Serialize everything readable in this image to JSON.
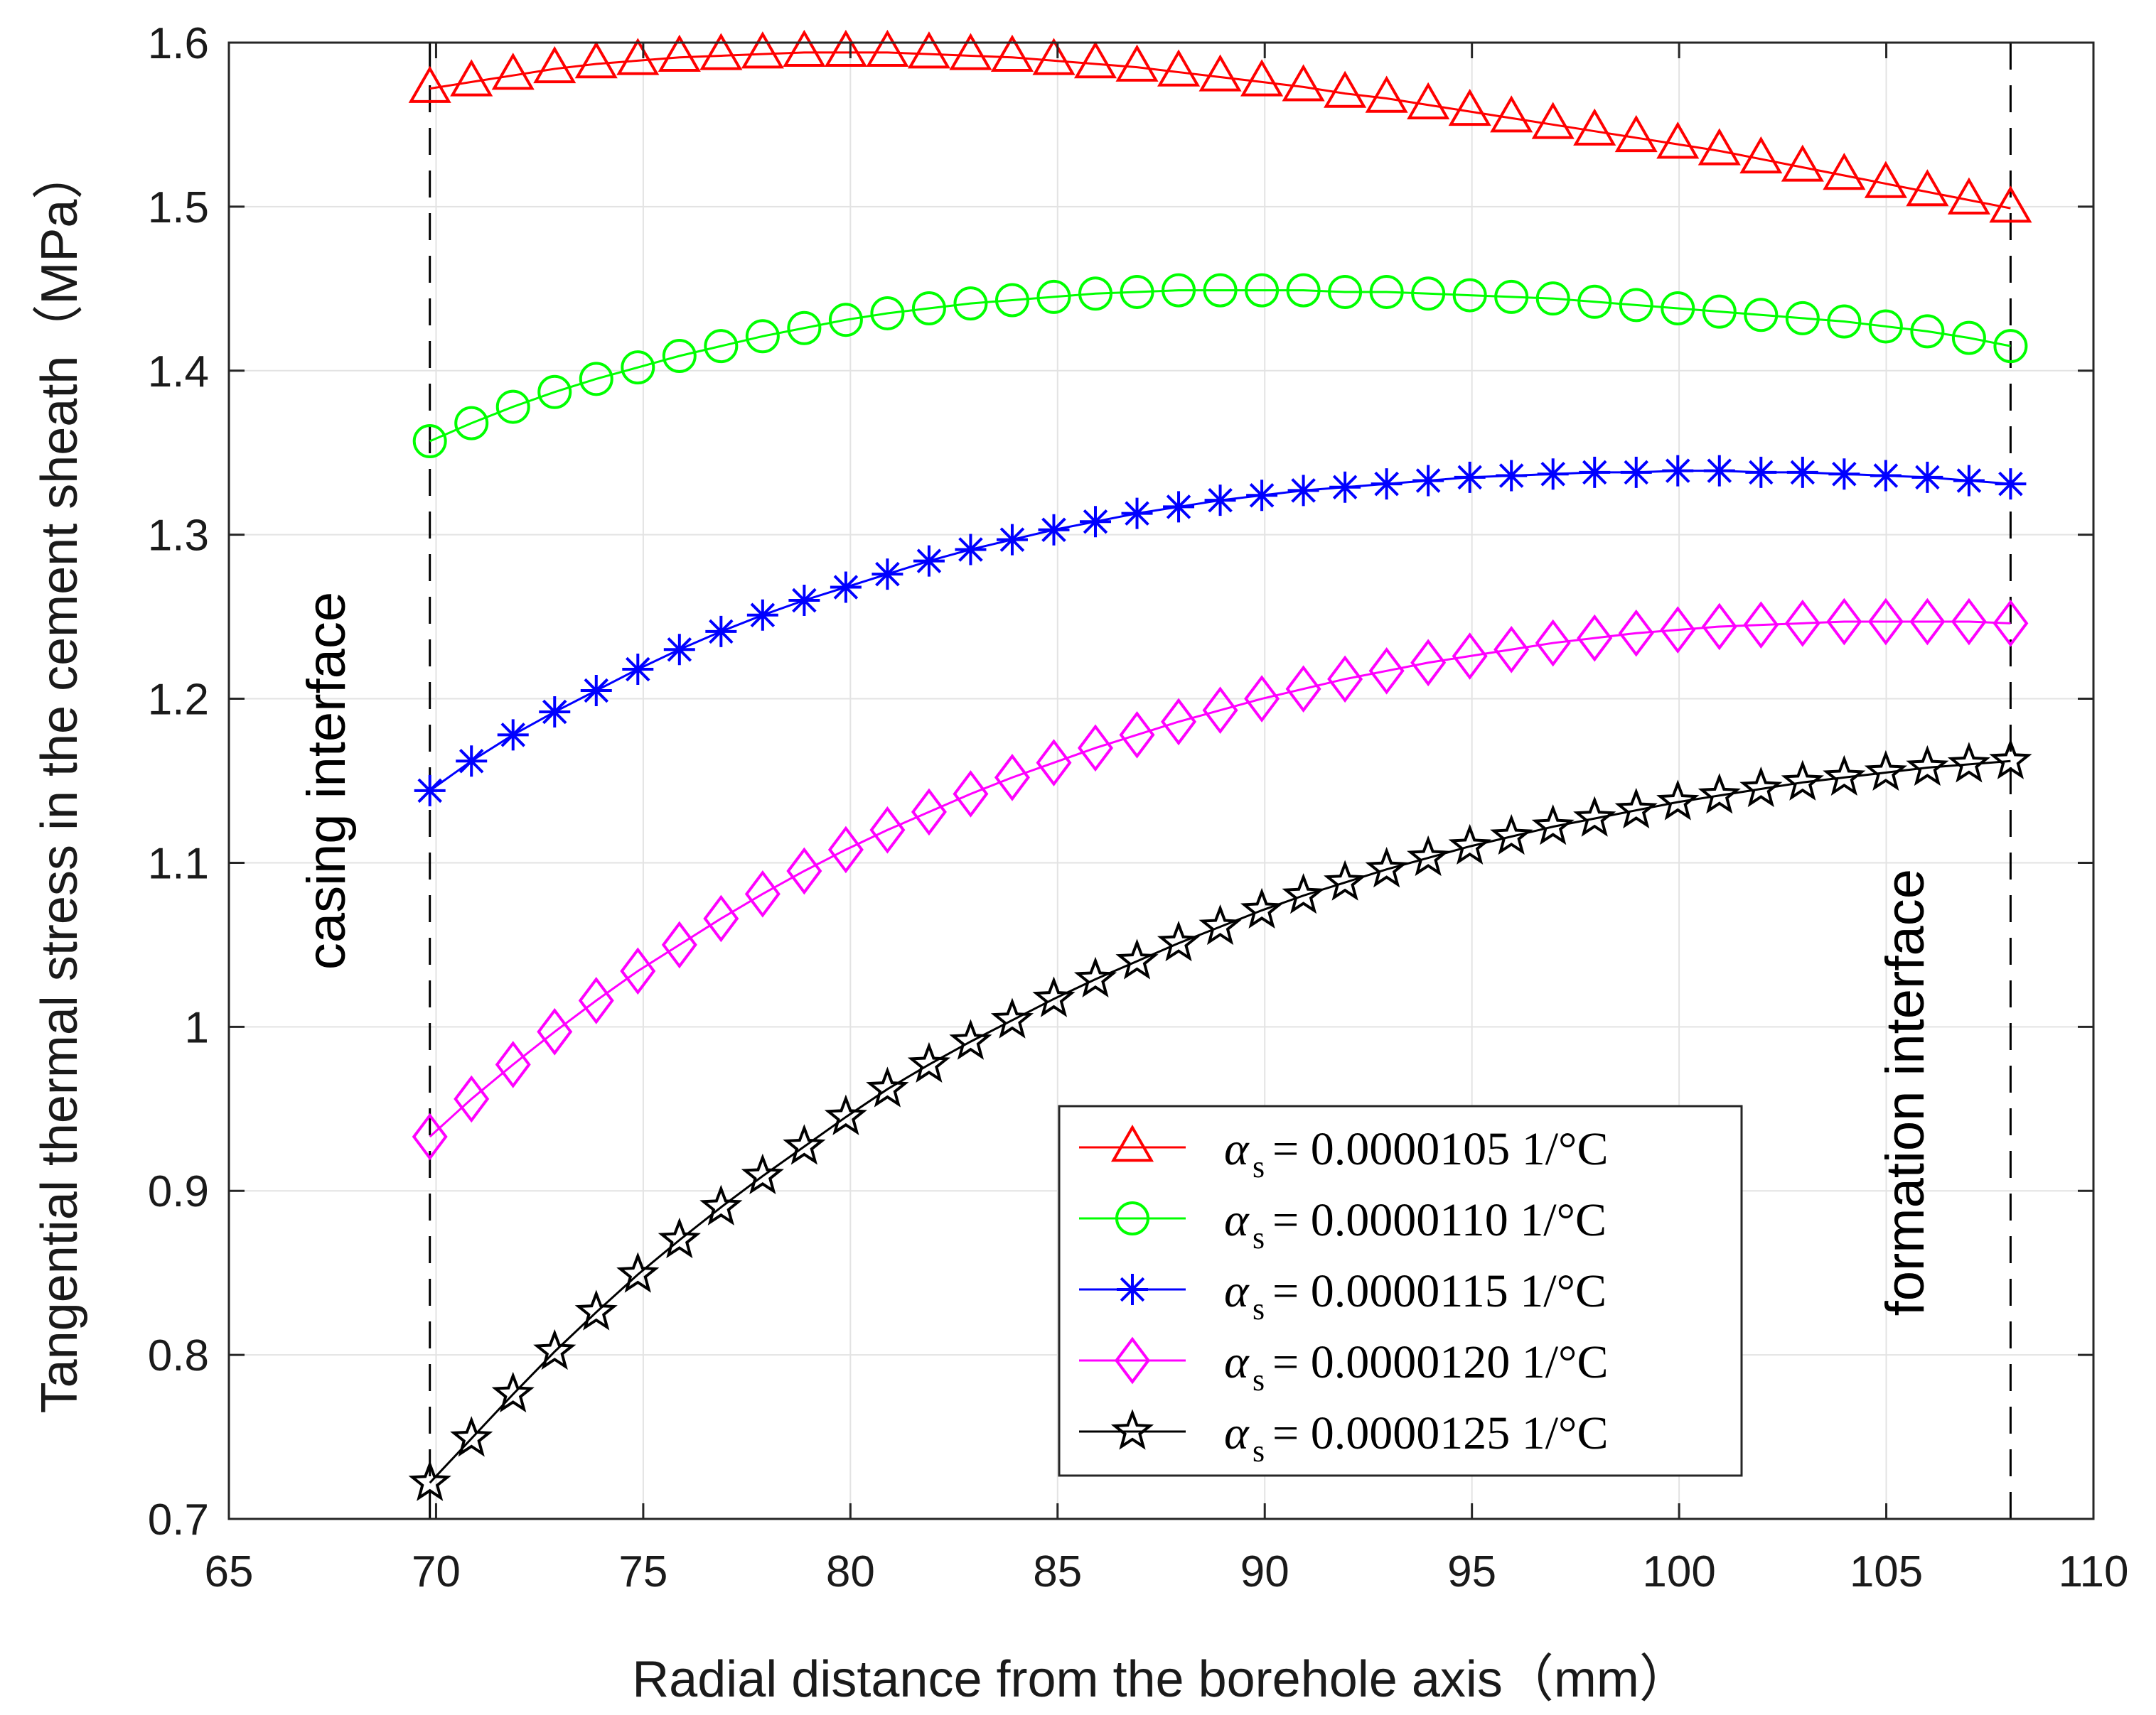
{
  "chart_data": {
    "type": "line",
    "title": "",
    "xlabel": "Radial distance from the borehole axis（mm）",
    "ylabel": "Tangential thermal stress in the cement sheath（MPa）",
    "xlim": [
      65,
      110
    ],
    "ylim": [
      0.7,
      1.6
    ],
    "xticks": [
      65,
      70,
      75,
      80,
      85,
      90,
      95,
      100,
      105,
      110
    ],
    "yticks": [
      0.7,
      0.8,
      0.9,
      1.0,
      1.1,
      1.2,
      1.3,
      1.4,
      1.5,
      1.6
    ],
    "xtick_labels": [
      "65",
      "70",
      "75",
      "80",
      "85",
      "90",
      "95",
      "100",
      "105",
      "110"
    ],
    "ytick_labels": [
      "0.7",
      "0.8",
      "0.9",
      "1",
      "1.1",
      "1.2",
      "1.3",
      "1.4",
      "1.5",
      "1.6"
    ],
    "grid": true,
    "legend_position": "bottom-right",
    "x_start": 69.85,
    "x_end": 108.0,
    "n_points": 39,
    "vertical_lines": [
      69.85,
      108.0
    ],
    "annotations": [
      {
        "text": "casing  interface",
        "x": 67.8,
        "y": 1.15
      },
      {
        "text": "formation  interface",
        "x": 105.9,
        "y": 0.96
      }
    ],
    "series": [
      {
        "name": "αs = 0.0000105  1/°C",
        "symbol": "α",
        "subscript": "s",
        "value_text": "= 0.0000105  1/°C",
        "color": "#ff0000",
        "marker": "triangle",
        "values": [
          1.572,
          1.576,
          1.58,
          1.584,
          1.587,
          1.589,
          1.591,
          1.592,
          1.593,
          1.594,
          1.594,
          1.594,
          1.593,
          1.592,
          1.591,
          1.589,
          1.587,
          1.585,
          1.582,
          1.579,
          1.576,
          1.573,
          1.569,
          1.566,
          1.562,
          1.558,
          1.554,
          1.55,
          1.546,
          1.542,
          1.538,
          1.534,
          1.529,
          1.524,
          1.519,
          1.514,
          1.509,
          1.504,
          1.499
        ]
      },
      {
        "name": "αs = 0.0000110   1/°C",
        "symbol": "α",
        "subscript": "s",
        "value_text": "= 0.0000110   1/°C",
        "color": "#00ff00",
        "marker": "circle",
        "values": [
          1.357,
          1.368,
          1.378,
          1.387,
          1.395,
          1.402,
          1.409,
          1.415,
          1.421,
          1.426,
          1.431,
          1.435,
          1.438,
          1.441,
          1.443,
          1.445,
          1.447,
          1.448,
          1.449,
          1.449,
          1.449,
          1.449,
          1.448,
          1.448,
          1.447,
          1.446,
          1.445,
          1.444,
          1.442,
          1.44,
          1.438,
          1.436,
          1.434,
          1.432,
          1.43,
          1.427,
          1.424,
          1.42,
          1.415
        ]
      },
      {
        "name": "αs = 0.0000115  1/°C",
        "symbol": "α",
        "subscript": "s",
        "value_text": "= 0.0000115  1/°C",
        "color": "#0000ff",
        "marker": "asterisk",
        "values": [
          1.144,
          1.162,
          1.178,
          1.192,
          1.205,
          1.218,
          1.23,
          1.241,
          1.251,
          1.26,
          1.268,
          1.276,
          1.284,
          1.291,
          1.297,
          1.303,
          1.308,
          1.313,
          1.317,
          1.321,
          1.324,
          1.327,
          1.329,
          1.331,
          1.333,
          1.335,
          1.336,
          1.337,
          1.338,
          1.338,
          1.339,
          1.339,
          1.338,
          1.338,
          1.337,
          1.336,
          1.335,
          1.333,
          1.331
        ]
      },
      {
        "name": "αs = 0.0000120  1/°C",
        "symbol": "α",
        "subscript": "s",
        "value_text": "= 0.0000120  1/°C",
        "color": "#ff00ff",
        "marker": "diamond",
        "values": [
          0.933,
          0.956,
          0.977,
          0.997,
          1.016,
          1.034,
          1.05,
          1.066,
          1.081,
          1.095,
          1.108,
          1.12,
          1.131,
          1.142,
          1.152,
          1.161,
          1.17,
          1.178,
          1.186,
          1.193,
          1.2,
          1.206,
          1.212,
          1.217,
          1.222,
          1.226,
          1.23,
          1.234,
          1.237,
          1.24,
          1.242,
          1.244,
          1.245,
          1.246,
          1.247,
          1.247,
          1.247,
          1.247,
          1.246
        ]
      },
      {
        "name": "αs = 0.0000125  1/°C",
        "symbol": "α",
        "subscript": "s",
        "value_text": "= 0.0000125  1/°C",
        "color": "#000000",
        "marker": "pentagram",
        "values": [
          0.722,
          0.749,
          0.776,
          0.802,
          0.826,
          0.849,
          0.87,
          0.89,
          0.909,
          0.927,
          0.945,
          0.962,
          0.977,
          0.991,
          1.004,
          1.017,
          1.029,
          1.04,
          1.051,
          1.061,
          1.071,
          1.08,
          1.088,
          1.096,
          1.103,
          1.11,
          1.116,
          1.122,
          1.127,
          1.132,
          1.137,
          1.141,
          1.145,
          1.149,
          1.152,
          1.155,
          1.158,
          1.16,
          1.162
        ]
      }
    ]
  }
}
